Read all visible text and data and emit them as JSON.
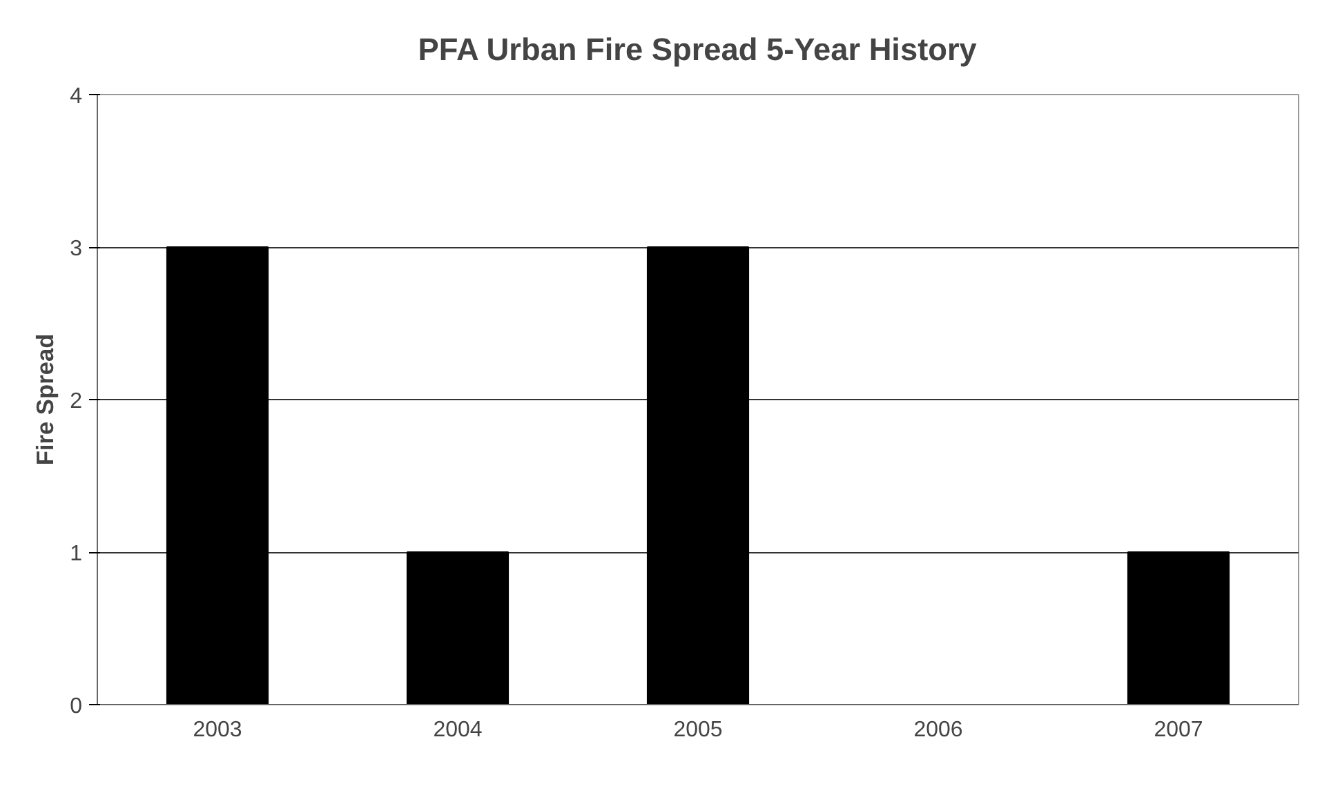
{
  "chart_data": {
    "type": "bar",
    "title": "PFA Urban Fire Spread 5-Year History",
    "ylabel": "Fire Spread",
    "categories": [
      "2003",
      "2004",
      "2005",
      "2006",
      "2007"
    ],
    "values": [
      3,
      1,
      3,
      0,
      1
    ],
    "color": "#000000",
    "ylim": [
      0,
      4
    ],
    "yticks": [
      0,
      1,
      2,
      3,
      4
    ],
    "grid": "y"
  }
}
